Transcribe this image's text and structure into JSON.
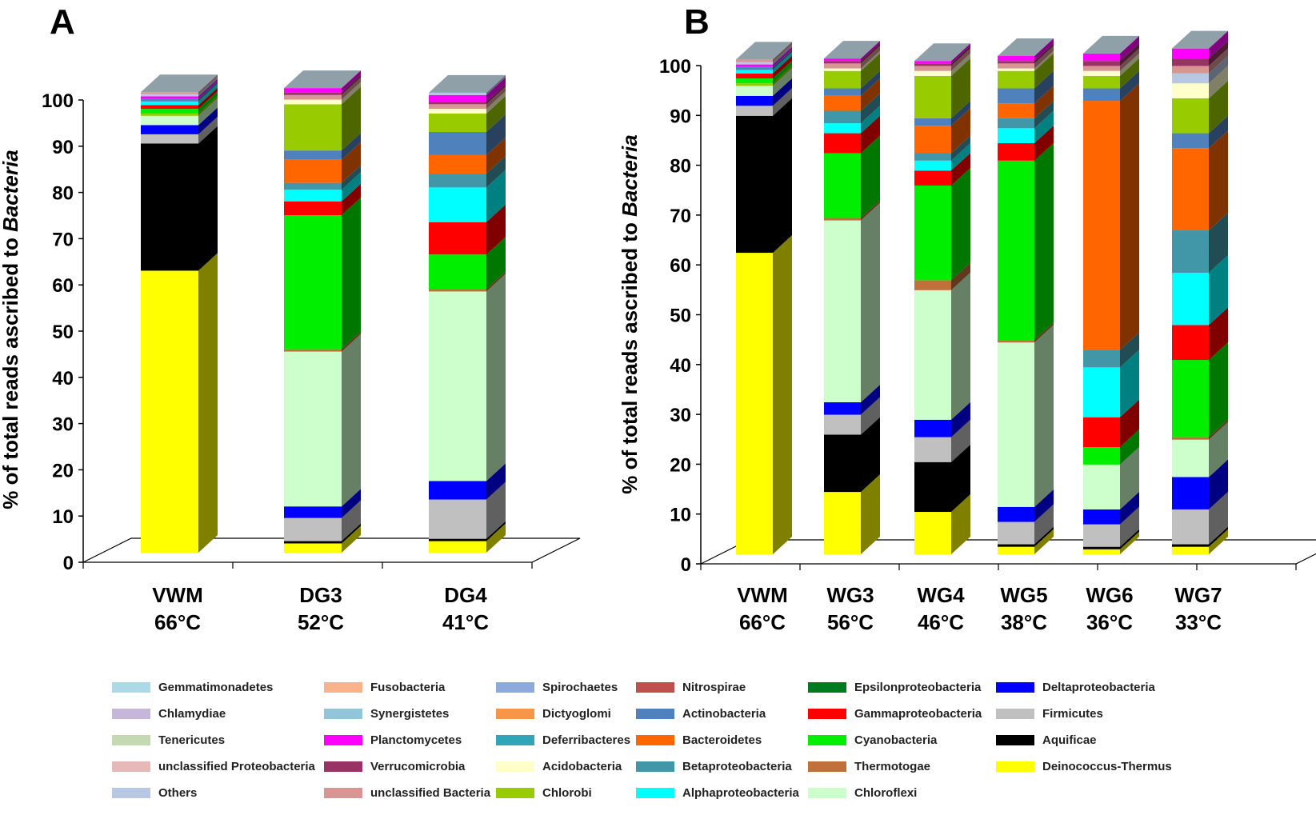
{
  "chart_data": [
    {
      "panel_label": "A",
      "type": "bar",
      "stacked": true,
      "ylabel_prefix": "% of total reads ascribed to ",
      "ylabel_italic": "Bacteria",
      "ylim": [
        0,
        100
      ],
      "yticks": [
        "0",
        "10",
        "20",
        "30",
        "40",
        "50",
        "60",
        "70",
        "80",
        "90",
        "100"
      ],
      "categories": [
        {
          "name": "VWM",
          "temp": "66°C"
        },
        {
          "name": "DG3",
          "temp": "52°C"
        },
        {
          "name": "DG4",
          "temp": "41°C"
        }
      ],
      "stacks": [
        [
          [
            "Deinococcus-Thermus",
            61
          ],
          [
            "Aquificae",
            27.5
          ],
          [
            "Firmicutes",
            2
          ],
          [
            "Deltaproteobacteria",
            2
          ],
          [
            "Chloroflexi",
            2
          ],
          [
            "Chlorobi",
            0.5
          ],
          [
            "Cyanobacteria",
            1
          ],
          [
            "Gammaproteobacteria",
            0.8
          ],
          [
            "Alphaproteobacteria",
            0.8
          ],
          [
            "Actinobacteria",
            0.6
          ],
          [
            "Planctomycetes",
            0.5
          ],
          [
            "Others",
            0.5
          ],
          [
            "unclassified Bacteria",
            0.4
          ]
        ],
        [
          [
            "Deinococcus-Thermus",
            2
          ],
          [
            "Aquificae",
            0.5
          ],
          [
            "Firmicutes",
            5
          ],
          [
            "Deltaproteobacteria",
            2.5
          ],
          [
            "Chloroflexi",
            33.5
          ],
          [
            "Thermotogae",
            0.5
          ],
          [
            "Cyanobacteria",
            29
          ],
          [
            "Gammaproteobacteria",
            3
          ],
          [
            "Alphaproteobacteria",
            2.5
          ],
          [
            "Betaproteobacteria",
            1.5
          ],
          [
            "Bacteroidetes",
            5
          ],
          [
            "Actinobacteria",
            2
          ],
          [
            "Chlorobi",
            10
          ],
          [
            "Acidobacteria",
            1
          ],
          [
            "unclassified Bacteria",
            1
          ],
          [
            "Verrucomicrobia",
            0.5
          ],
          [
            "Planctomycetes",
            1
          ]
        ],
        [
          [
            "Deinococcus-Thermus",
            2.5
          ],
          [
            "Aquificae",
            0.5
          ],
          [
            "Firmicutes",
            8.5
          ],
          [
            "Deltaproteobacteria",
            4
          ],
          [
            "Chloroflexi",
            41
          ],
          [
            "Thermotogae",
            0.5
          ],
          [
            "Cyanobacteria",
            7.5
          ],
          [
            "Gammaproteobacteria",
            7
          ],
          [
            "Alphaproteobacteria",
            7.5
          ],
          [
            "Betaproteobacteria",
            3
          ],
          [
            "Bacteroidetes",
            4
          ],
          [
            "Actinobacteria",
            5
          ],
          [
            "Chlorobi",
            4
          ],
          [
            "Acidobacteria",
            1
          ],
          [
            "unclassified Bacteria",
            1
          ],
          [
            "Verrucomicrobia",
            0.5
          ],
          [
            "Planctomycetes",
            1.5
          ],
          [
            "Others",
            0.5
          ]
        ]
      ]
    },
    {
      "panel_label": "B",
      "type": "bar",
      "stacked": true,
      "ylabel_prefix": "% of total reads ascribed to ",
      "ylabel_italic": "Bacteria",
      "ylim": [
        0,
        100
      ],
      "yticks": [
        "0",
        "10",
        "20",
        "30",
        "40",
        "50",
        "60",
        "70",
        "80",
        "90",
        "100"
      ],
      "categories": [
        {
          "name": "VWM",
          "temp": "66°C"
        },
        {
          "name": "WG3",
          "temp": "56°C"
        },
        {
          "name": "WG4",
          "temp": "46°C"
        },
        {
          "name": "WG5",
          "temp": "38°C"
        },
        {
          "name": "WG6",
          "temp": "36°C"
        },
        {
          "name": "WG7",
          "temp": "33°C"
        }
      ],
      "stacks": [
        [
          [
            "Deinococcus-Thermus",
            60.5
          ],
          [
            "Aquificae",
            27.5
          ],
          [
            "Firmicutes",
            2
          ],
          [
            "Deltaproteobacteria",
            2
          ],
          [
            "Chloroflexi",
            2
          ],
          [
            "Chlorobi",
            0.5
          ],
          [
            "Cyanobacteria",
            1
          ],
          [
            "Gammaproteobacteria",
            1
          ],
          [
            "Alphaproteobacteria",
            0.7
          ],
          [
            "Actinobacteria",
            0.6
          ],
          [
            "Planctomycetes",
            0.5
          ],
          [
            "Others",
            0.5
          ],
          [
            "unclassified Bacteria",
            0.5
          ]
        ],
        [
          [
            "Deinococcus-Thermus",
            12.5
          ],
          [
            "Aquificae",
            11.5
          ],
          [
            "Firmicutes",
            4
          ],
          [
            "Deltaproteobacteria",
            2.5
          ],
          [
            "Chloroflexi",
            36.5
          ],
          [
            "Thermotogae",
            0.5
          ],
          [
            "Cyanobacteria",
            13
          ],
          [
            "Gammaproteobacteria",
            4
          ],
          [
            "Alphaproteobacteria",
            2
          ],
          [
            "Betaproteobacteria",
            2.5
          ],
          [
            "Bacteroidetes",
            3
          ],
          [
            "Actinobacteria",
            1.5
          ],
          [
            "Chlorobi",
            3.5
          ],
          [
            "Acidobacteria",
            0.5
          ],
          [
            "unclassified Bacteria",
            1
          ],
          [
            "Verrucomicrobia",
            0.5
          ],
          [
            "Planctomycetes",
            0.5
          ]
        ],
        [
          [
            "Deinococcus-Thermus",
            8.5
          ],
          [
            "Aquificae",
            10
          ],
          [
            "Firmicutes",
            5
          ],
          [
            "Deltaproteobacteria",
            3.5
          ],
          [
            "Chloroflexi",
            26
          ],
          [
            "Thermotogae",
            2
          ],
          [
            "Cyanobacteria",
            19
          ],
          [
            "Gammaproteobacteria",
            3
          ],
          [
            "Alphaproteobacteria",
            2
          ],
          [
            "Betaproteobacteria",
            1.5
          ],
          [
            "Bacteroidetes",
            5.5
          ],
          [
            "Actinobacteria",
            1.5
          ],
          [
            "Chlorobi",
            8.5
          ],
          [
            "Acidobacteria",
            1
          ],
          [
            "unclassified Bacteria",
            1
          ],
          [
            "Verrucomicrobia",
            0.5
          ],
          [
            "Planctomycetes",
            0.5
          ]
        ],
        [
          [
            "Deinococcus-Thermus",
            1.5
          ],
          [
            "Aquificae",
            0.5
          ],
          [
            "Firmicutes",
            4.5
          ],
          [
            "Deltaproteobacteria",
            3
          ],
          [
            "Chloroflexi",
            33
          ],
          [
            "Thermotogae",
            0.5
          ],
          [
            "Cyanobacteria",
            36
          ],
          [
            "Gammaproteobacteria",
            3.5
          ],
          [
            "Alphaproteobacteria",
            3
          ],
          [
            "Betaproteobacteria",
            2
          ],
          [
            "Bacteroidetes",
            3
          ],
          [
            "Actinobacteria",
            3
          ],
          [
            "Chlorobi",
            3.5
          ],
          [
            "Acidobacteria",
            0.5
          ],
          [
            "unclassified Bacteria",
            1
          ],
          [
            "Verrucomicrobia",
            0.5
          ],
          [
            "Planctomycetes",
            1
          ]
        ],
        [
          [
            "Deinococcus-Thermus",
            1
          ],
          [
            "Aquificae",
            0.5
          ],
          [
            "Firmicutes",
            4.5
          ],
          [
            "Deltaproteobacteria",
            3
          ],
          [
            "Chloroflexi",
            9
          ],
          [
            "Cyanobacteria",
            3.5
          ],
          [
            "Gammaproteobacteria",
            6
          ],
          [
            "Alphaproteobacteria",
            10
          ],
          [
            "Betaproteobacteria",
            3.5
          ],
          [
            "Bacteroidetes",
            50
          ],
          [
            "Actinobacteria",
            2.5
          ],
          [
            "Chlorobi",
            2.5
          ],
          [
            "Acidobacteria",
            1
          ],
          [
            "unclassified Bacteria",
            1
          ],
          [
            "Verrucomicrobia",
            1
          ],
          [
            "Planctomycetes",
            1.5
          ]
        ],
        [
          [
            "Deinococcus-Thermus",
            1.5
          ],
          [
            "Aquificae",
            0.5
          ],
          [
            "Firmicutes",
            7
          ],
          [
            "Deltaproteobacteria",
            6.5
          ],
          [
            "Chloroflexi",
            7.5
          ],
          [
            "Thermotogae",
            0.5
          ],
          [
            "Cyanobacteria",
            15.5
          ],
          [
            "Gammaproteobacteria",
            7
          ],
          [
            "Alphaproteobacteria",
            10.5
          ],
          [
            "Betaproteobacteria",
            8.5
          ],
          [
            "Bacteroidetes",
            16.5
          ],
          [
            "Actinobacteria",
            3
          ],
          [
            "Chlorobi",
            7
          ],
          [
            "Acidobacteria",
            3
          ],
          [
            "Others",
            2
          ],
          [
            "unclassified Bacteria",
            1.5
          ],
          [
            "Verrucomicrobia",
            1.5
          ],
          [
            "Planctomycetes",
            2
          ]
        ]
      ]
    }
  ],
  "legend": [
    {
      "name": "Gemmatimonadetes",
      "color": "#add8e6"
    },
    {
      "name": "Fusobacteria",
      "color": "#f9b28a"
    },
    {
      "name": "Spirochaetes",
      "color": "#8ea9db"
    },
    {
      "name": "Nitrospirae",
      "color": "#c0504d"
    },
    {
      "name": "Epsilonproteobacteria",
      "color": "#007a1f"
    },
    {
      "name": "Deltaproteobacteria",
      "color": "#0000ff"
    },
    {
      "name": "Chlamydiae",
      "color": "#c5b6da"
    },
    {
      "name": "Synergistetes",
      "color": "#92c5da"
    },
    {
      "name": "Dictyoglomi",
      "color": "#f79646"
    },
    {
      "name": "Actinobacteria",
      "color": "#4f81bd"
    },
    {
      "name": "Gammaproteobacteria",
      "color": "#ff0000"
    },
    {
      "name": "Firmicutes",
      "color": "#c0c0c0"
    },
    {
      "name": "Tenericutes",
      "color": "#c4d9b1"
    },
    {
      "name": "Planctomycetes",
      "color": "#ff00ff"
    },
    {
      "name": "Deferribacteres",
      "color": "#31a5b8"
    },
    {
      "name": "Bacteroidetes",
      "color": "#ff6600"
    },
    {
      "name": "Cyanobacteria",
      "color": "#00ee00"
    },
    {
      "name": "Aquificae",
      "color": "#000000"
    },
    {
      "name": "unclassified Proteobacteria",
      "color": "#e6b8b7"
    },
    {
      "name": "Verrucomicrobia",
      "color": "#993366"
    },
    {
      "name": "Acidobacteria",
      "color": "#ffffcc"
    },
    {
      "name": "Betaproteobacteria",
      "color": "#4197a8"
    },
    {
      "name": "Thermotogae",
      "color": "#c0703a"
    },
    {
      "name": "Deinococcus-Thermus",
      "color": "#ffff00"
    },
    {
      "name": "Others",
      "color": "#b8c8e4"
    },
    {
      "name": "unclassified Bacteria",
      "color": "#d99594"
    },
    {
      "name": "Chlorobi",
      "color": "#99cc00"
    },
    {
      "name": "Alphaproteobacteria",
      "color": "#00ffff"
    },
    {
      "name": "Chloroflexi",
      "color": "#ccffcc"
    }
  ],
  "top_face_color": "#8fa0a8"
}
